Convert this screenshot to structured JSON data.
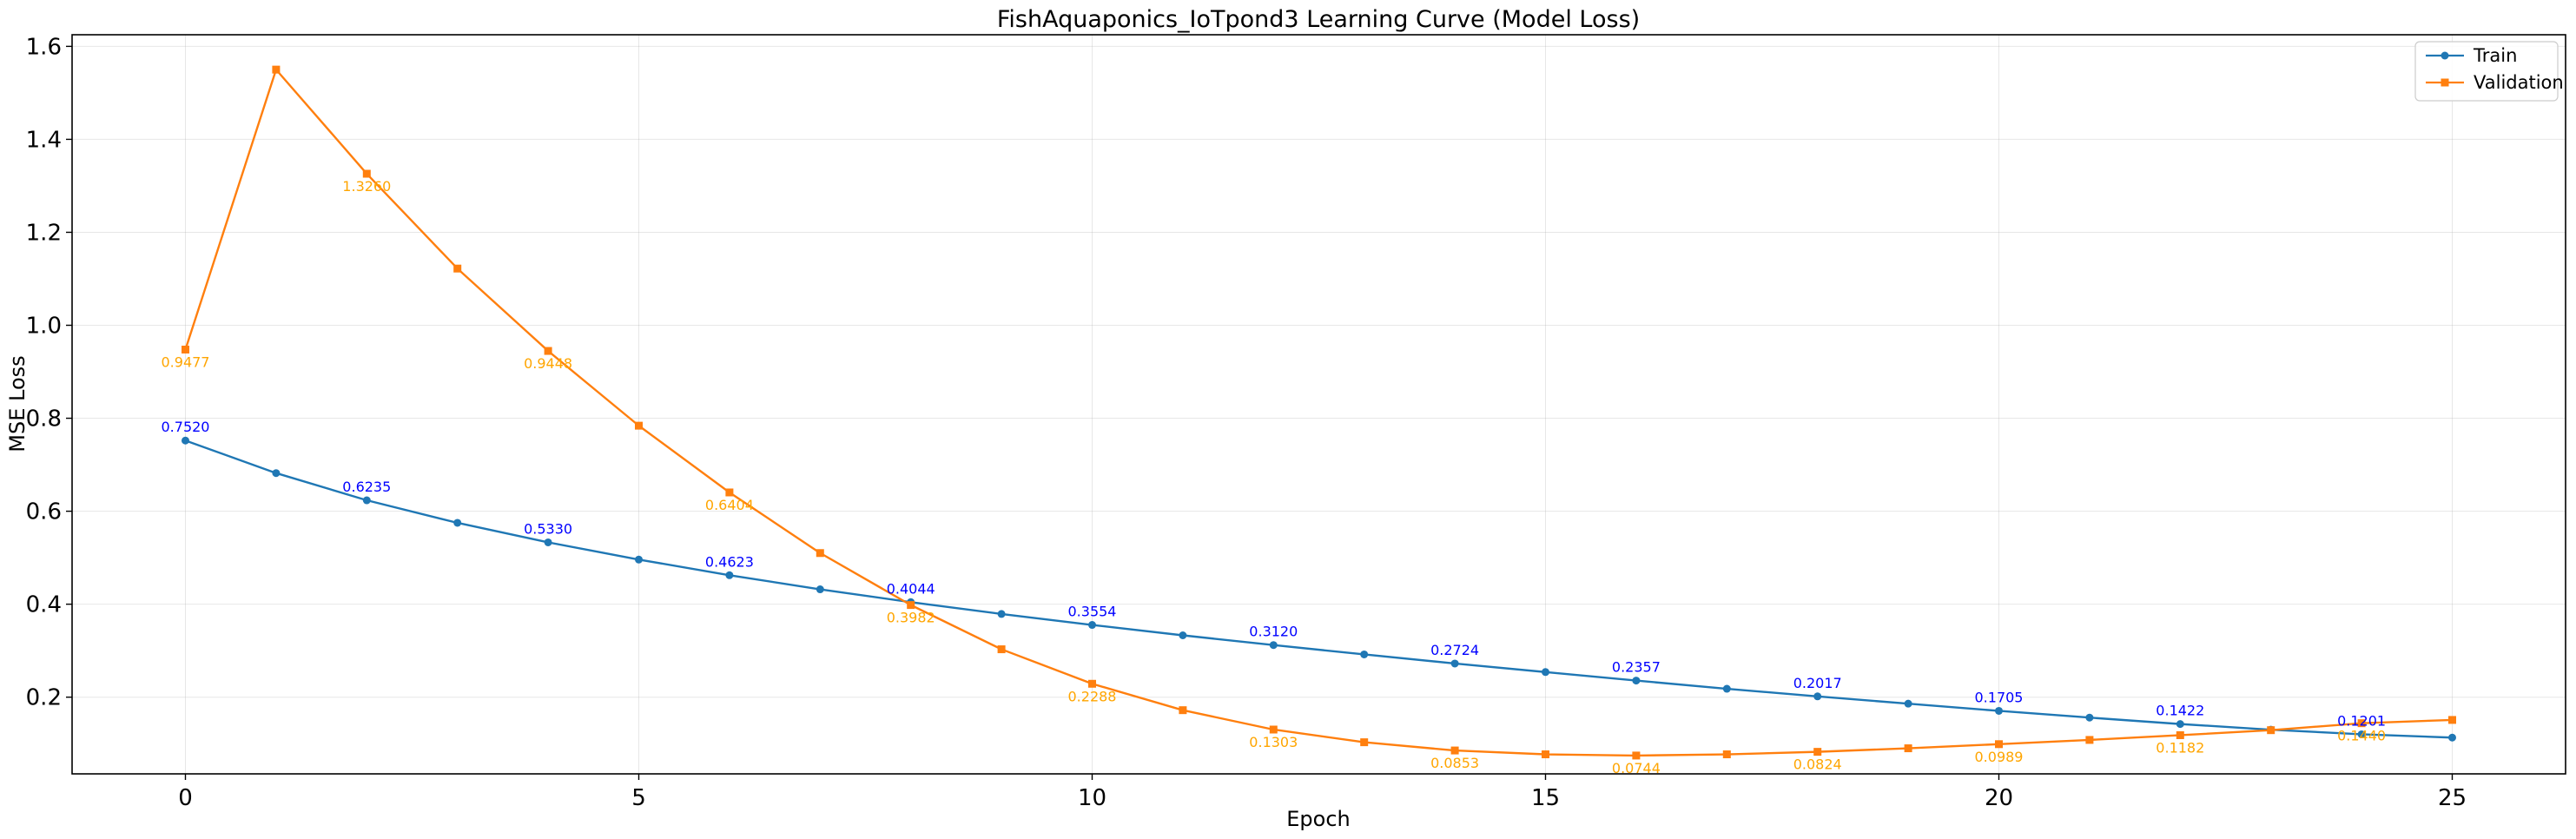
{
  "chart_data": {
    "type": "line",
    "title": "FishAquaponics_IoTpond3 Learning Curve (Model Loss)",
    "xlabel": "Epoch",
    "ylabel": "MSE Loss",
    "xlim": [
      -1.25,
      26.25
    ],
    "ylim": [
      0.035,
      1.625
    ],
    "xticks": [
      0,
      5,
      10,
      15,
      20,
      25
    ],
    "yticks": [
      0.2,
      0.4,
      0.6,
      0.8,
      1.0,
      1.2,
      1.4,
      1.6
    ],
    "ytick_labels": [
      "0.2",
      "0.4",
      "0.6",
      "0.8",
      "1.0",
      "1.2",
      "1.4",
      "1.6"
    ],
    "grid": true,
    "legend_position": "top-right",
    "x": [
      0,
      1,
      2,
      3,
      4,
      5,
      6,
      7,
      8,
      9,
      10,
      11,
      12,
      13,
      14,
      15,
      16,
      17,
      18,
      19,
      20,
      21,
      22,
      23,
      24,
      25
    ],
    "series": [
      {
        "name": "Train",
        "color": "#1f77b4",
        "marker": "circle",
        "values": [
          0.752,
          0.682,
          0.6235,
          0.575,
          0.533,
          0.496,
          0.4623,
          0.432,
          0.4044,
          0.379,
          0.3554,
          0.333,
          0.312,
          0.292,
          0.2724,
          0.254,
          0.2357,
          0.218,
          0.2017,
          0.186,
          0.1705,
          0.156,
          0.1422,
          0.13,
          0.1201,
          0.113
        ],
        "annotation_color": "#0000ff",
        "annotations": [
          {
            "x": 0,
            "label": "0.7520"
          },
          {
            "x": 2,
            "label": "0.6235"
          },
          {
            "x": 4,
            "label": "0.5330"
          },
          {
            "x": 6,
            "label": "0.4623"
          },
          {
            "x": 8,
            "label": "0.4044"
          },
          {
            "x": 10,
            "label": "0.3554"
          },
          {
            "x": 12,
            "label": "0.3120"
          },
          {
            "x": 14,
            "label": "0.2724"
          },
          {
            "x": 16,
            "label": "0.2357"
          },
          {
            "x": 18,
            "label": "0.2017"
          },
          {
            "x": 20,
            "label": "0.1705"
          },
          {
            "x": 22,
            "label": "0.1422"
          },
          {
            "x": 24,
            "label": "0.1201"
          }
        ]
      },
      {
        "name": "Validation",
        "color": "#ff7f0e",
        "marker": "square",
        "values": [
          0.9477,
          1.55,
          1.326,
          1.122,
          0.9448,
          0.784,
          0.6404,
          0.51,
          0.3982,
          0.303,
          0.2288,
          0.172,
          0.1303,
          0.103,
          0.0853,
          0.077,
          0.0744,
          0.077,
          0.0824,
          0.09,
          0.0989,
          0.108,
          0.1182,
          0.129,
          0.144,
          0.151
        ],
        "annotation_color": "#ffa500",
        "annotations": [
          {
            "x": 0,
            "label": "0.9477"
          },
          {
            "x": 2,
            "label": "1.3260"
          },
          {
            "x": 4,
            "label": "0.9448"
          },
          {
            "x": 6,
            "label": "0.6404"
          },
          {
            "x": 8,
            "label": "0.3982"
          },
          {
            "x": 10,
            "label": "0.2288"
          },
          {
            "x": 12,
            "label": "0.1303"
          },
          {
            "x": 14,
            "label": "0.0853"
          },
          {
            "x": 16,
            "label": "0.0744"
          },
          {
            "x": 18,
            "label": "0.0824"
          },
          {
            "x": 20,
            "label": "0.0989"
          },
          {
            "x": 22,
            "label": "0.1182"
          },
          {
            "x": 24,
            "label": "0.1440"
          }
        ]
      }
    ]
  }
}
